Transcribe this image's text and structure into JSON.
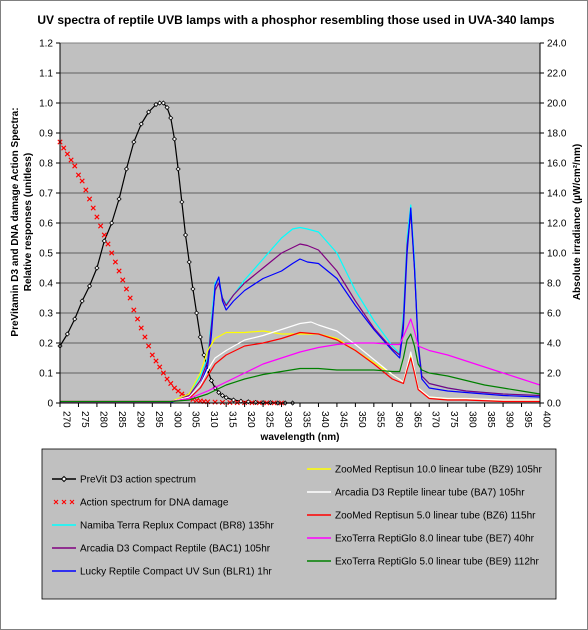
{
  "chart_data": {
    "type": "line",
    "title": "UV spectra of reptile UVB lamps with a phosphor resembling those used in UVA-340 lamps",
    "xlabel": "wavelength (nm)",
    "ylabel_left_line1": "PreVitamin D3 and DNA damage Action Spectra:",
    "ylabel_left_line2": "Relative responses (unitless)",
    "ylabel_right": "Absolute irradiance (µW/cm²/nm)",
    "xlim": [
      270,
      400
    ],
    "ylim_left": [
      0,
      1.2
    ],
    "ylim_right": [
      0,
      24
    ],
    "x_ticks": [
      "270",
      "275",
      "280",
      "285",
      "290",
      "295",
      "300",
      "305",
      "310",
      "315",
      "320",
      "325",
      "330",
      "335",
      "340",
      "345",
      "350",
      "355",
      "360",
      "365",
      "370",
      "375",
      "380",
      "385",
      "390",
      "395",
      "400"
    ],
    "y_ticks_left": [
      "0",
      "0.1",
      "0.2",
      "0.3",
      "0.4",
      "0.5",
      "0.6",
      "0.7",
      "0.8",
      "0.9",
      "1.0",
      "1.1",
      "1.2"
    ],
    "y_ticks_right": [
      "0.0",
      "2.0",
      "4.0",
      "6.0",
      "8.0",
      "10.0",
      "12.0",
      "14.0",
      "16.0",
      "18.0",
      "20.0",
      "22.0",
      "24.0"
    ],
    "grid": true,
    "plot_background": "#c0c0c0",
    "series": [
      {
        "name": "PreVit D3 action spectrum",
        "axis": "left",
        "color": "#000000",
        "style": "line-diamond",
        "x": [
          270,
          272,
          274,
          276,
          278,
          280,
          282,
          284,
          286,
          288,
          290,
          292,
          294,
          296,
          297,
          298,
          299,
          300,
          301,
          302,
          303,
          304,
          305,
          306,
          307,
          308,
          309,
          310,
          311,
          312,
          313,
          314,
          315,
          317,
          319,
          321,
          323,
          325,
          327,
          329,
          331,
          333
        ],
        "y": [
          0.19,
          0.23,
          0.28,
          0.34,
          0.39,
          0.45,
          0.54,
          0.6,
          0.68,
          0.78,
          0.87,
          0.93,
          0.97,
          0.995,
          1.0,
          1.0,
          0.985,
          0.95,
          0.88,
          0.78,
          0.67,
          0.56,
          0.47,
          0.38,
          0.3,
          0.22,
          0.16,
          0.11,
          0.075,
          0.05,
          0.035,
          0.025,
          0.018,
          0.01,
          0.006,
          0.004,
          0.002,
          0.001,
          0.001,
          0.0,
          0.0,
          0.0
        ]
      },
      {
        "name": "Action spectrum for DNA damage",
        "axis": "left",
        "color": "#ff0000",
        "style": "x-markers",
        "x": [
          270,
          271,
          272,
          273,
          274,
          275,
          276,
          277,
          278,
          279,
          280,
          281,
          282,
          283,
          284,
          285,
          286,
          287,
          288,
          289,
          290,
          291,
          292,
          293,
          294,
          295,
          296,
          297,
          298,
          299,
          300,
          301,
          302,
          303,
          304,
          305,
          306,
          307,
          308,
          309,
          310,
          312,
          314,
          316,
          318,
          320,
          322,
          324,
          326,
          328,
          330
        ],
        "y": [
          0.87,
          0.85,
          0.83,
          0.81,
          0.79,
          0.76,
          0.74,
          0.71,
          0.68,
          0.65,
          0.62,
          0.59,
          0.56,
          0.53,
          0.5,
          0.47,
          0.44,
          0.41,
          0.38,
          0.35,
          0.31,
          0.28,
          0.25,
          0.22,
          0.19,
          0.16,
          0.14,
          0.12,
          0.1,
          0.08,
          0.065,
          0.05,
          0.04,
          0.03,
          0.023,
          0.017,
          0.012,
          0.009,
          0.007,
          0.005,
          0.004,
          0.003,
          0.002,
          0.0015,
          0.001,
          0.001,
          0.0008,
          0.0006,
          0.0005,
          0.0004,
          0.0003
        ]
      },
      {
        "name": "Namiba Terra Replux Compact (BR8) 135hr",
        "axis": "right",
        "color": "#00ffff",
        "style": "line",
        "x": [
          270,
          300,
          305,
          308,
          310,
          311,
          312,
          313,
          314,
          315,
          317,
          320,
          325,
          330,
          333,
          335,
          337,
          340,
          345,
          350,
          355,
          360,
          362,
          363,
          364,
          365,
          366,
          367,
          368,
          370,
          375,
          380,
          390,
          400
        ],
        "y": [
          0.1,
          0.1,
          0.6,
          1.8,
          3.0,
          5.5,
          8.0,
          8.3,
          7.0,
          6.6,
          7.2,
          8.2,
          9.6,
          11.0,
          11.6,
          11.7,
          11.6,
          11.4,
          10.0,
          7.5,
          5.5,
          3.8,
          3.3,
          6.0,
          11.0,
          13.2,
          9.5,
          4.0,
          1.8,
          1.3,
          1.0,
          0.8,
          0.6,
          0.5
        ]
      },
      {
        "name": "Arcadia D3 Compact Reptile (BAC1) 105hr",
        "axis": "right",
        "color": "#800080",
        "style": "line",
        "x": [
          270,
          300,
          305,
          308,
          310,
          312,
          313,
          314,
          315,
          317,
          320,
          325,
          330,
          335,
          337,
          340,
          345,
          350,
          355,
          360,
          362,
          363,
          364,
          365,
          366,
          367,
          368,
          370,
          375,
          380,
          390,
          400
        ],
        "y": [
          0.1,
          0.1,
          0.5,
          1.5,
          2.8,
          7.5,
          8.0,
          7.0,
          6.5,
          7.2,
          8.0,
          9.0,
          10.0,
          10.6,
          10.5,
          10.2,
          8.8,
          6.8,
          5.0,
          3.6,
          3.2,
          5.5,
          10.5,
          12.7,
          9.0,
          4.0,
          1.8,
          1.3,
          1.0,
          0.8,
          0.6,
          0.5
        ]
      },
      {
        "name": "Lucky Reptile Compact UV Sun (BLR1) 1hr",
        "axis": "right",
        "color": "#0000ff",
        "style": "line",
        "x": [
          270,
          300,
          305,
          308,
          310,
          311,
          312,
          313,
          314,
          315,
          317,
          320,
          325,
          330,
          333,
          335,
          337,
          340,
          345,
          350,
          355,
          360,
          362,
          363,
          364,
          365,
          366,
          367,
          368,
          370,
          375,
          380,
          390,
          400
        ],
        "y": [
          0.05,
          0.05,
          0.4,
          1.2,
          2.5,
          4.5,
          7.8,
          8.4,
          6.8,
          6.2,
          6.8,
          7.5,
          8.3,
          8.8,
          9.3,
          9.6,
          9.4,
          9.3,
          8.3,
          6.5,
          4.9,
          3.5,
          3.0,
          5.0,
          10.0,
          13.0,
          9.0,
          3.8,
          1.6,
          1.0,
          0.8,
          0.7,
          0.5,
          0.4
        ]
      },
      {
        "name": "ZooMed Reptisun 10.0 linear tube (BZ9) 105hr",
        "axis": "right",
        "color": "#ffff00",
        "style": "line",
        "x": [
          270,
          300,
          305,
          308,
          310,
          312,
          315,
          320,
          325,
          330,
          335,
          340,
          345,
          350,
          355,
          360,
          363,
          364,
          365,
          366,
          367,
          370,
          375,
          380,
          390,
          400
        ],
        "y": [
          0.1,
          0.1,
          0.6,
          2.0,
          3.5,
          4.3,
          4.7,
          4.7,
          4.8,
          4.6,
          4.6,
          4.6,
          4.3,
          3.5,
          2.7,
          1.9,
          1.4,
          2.4,
          3.2,
          2.2,
          1.0,
          0.4,
          0.3,
          0.3,
          0.2,
          0.2
        ]
      },
      {
        "name": "Arcadia D3 Reptile linear tube (BA7) 105hr",
        "axis": "right",
        "color": "#ffffff",
        "style": "line",
        "x": [
          270,
          300,
          305,
          308,
          310,
          312,
          315,
          320,
          325,
          330,
          335,
          338,
          340,
          345,
          350,
          355,
          360,
          363,
          364,
          365,
          366,
          367,
          370,
          375,
          380,
          390,
          400
        ],
        "y": [
          0.1,
          0.1,
          0.4,
          1.2,
          2.2,
          3.0,
          3.5,
          4.2,
          4.5,
          4.9,
          5.3,
          5.4,
          5.2,
          4.8,
          3.9,
          2.9,
          1.9,
          1.4,
          2.4,
          3.4,
          2.2,
          1.0,
          0.4,
          0.3,
          0.3,
          0.2,
          0.2
        ]
      },
      {
        "name": "ZooMed Reptisun 5.0 linear tube (BZ6) 115hr",
        "axis": "right",
        "color": "#ff0000",
        "style": "line",
        "x": [
          270,
          300,
          305,
          308,
          310,
          312,
          315,
          320,
          325,
          330,
          335,
          340,
          345,
          350,
          355,
          360,
          363,
          364,
          365,
          366,
          367,
          370,
          375,
          380,
          390,
          400
        ],
        "y": [
          0.1,
          0.1,
          0.3,
          1.0,
          1.8,
          2.6,
          3.2,
          3.8,
          4.0,
          4.3,
          4.7,
          4.6,
          4.2,
          3.5,
          2.6,
          1.6,
          1.3,
          2.2,
          3.0,
          2.0,
          0.9,
          0.3,
          0.2,
          0.2,
          0.1,
          0.1
        ]
      },
      {
        "name": "ExoTerra ReptiGlo 8.0 linear tube (BE7) 40hr",
        "axis": "right",
        "color": "#ff00ff",
        "style": "line",
        "x": [
          270,
          300,
          305,
          310,
          315,
          320,
          325,
          330,
          335,
          340,
          345,
          350,
          355,
          360,
          362,
          364,
          365,
          366,
          367,
          368,
          370,
          375,
          380,
          385,
          390,
          395,
          400
        ],
        "y": [
          0.1,
          0.1,
          0.3,
          0.8,
          1.4,
          2.0,
          2.6,
          3.0,
          3.4,
          3.7,
          3.9,
          4.0,
          4.0,
          3.9,
          3.9,
          5.0,
          5.6,
          4.8,
          3.8,
          3.7,
          3.5,
          3.2,
          2.8,
          2.4,
          2.0,
          1.6,
          1.2
        ]
      },
      {
        "name": "ExoTerra ReptiGlo 5.0 linear tube (BE9) 112hr",
        "axis": "right",
        "color": "#008000",
        "style": "line",
        "x": [
          270,
          300,
          305,
          310,
          315,
          320,
          325,
          330,
          335,
          340,
          345,
          350,
          355,
          360,
          362,
          363,
          364,
          365,
          366,
          367,
          368,
          370,
          375,
          380,
          385,
          390,
          395,
          400
        ],
        "y": [
          0.1,
          0.1,
          0.2,
          0.6,
          1.2,
          1.6,
          1.9,
          2.1,
          2.3,
          2.3,
          2.2,
          2.2,
          2.2,
          2.1,
          2.1,
          3.0,
          4.2,
          4.6,
          3.8,
          2.6,
          2.2,
          2.0,
          1.8,
          1.5,
          1.2,
          1.0,
          0.8,
          0.6
        ]
      }
    ]
  }
}
